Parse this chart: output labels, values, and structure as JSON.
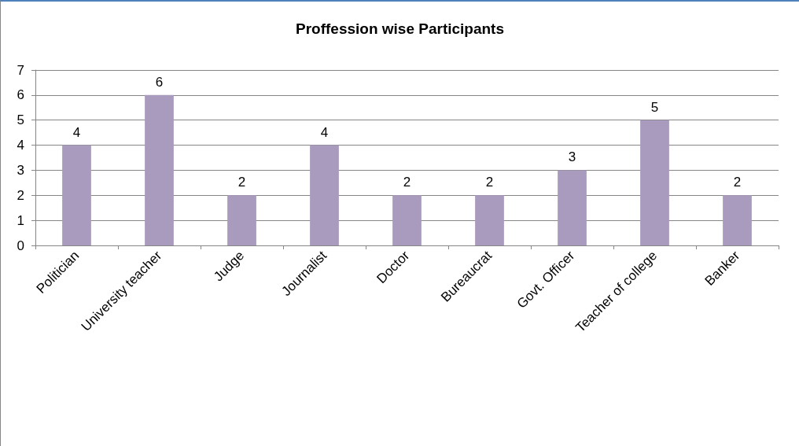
{
  "chart_data": {
    "type": "bar",
    "title": "Proffession wise Participants",
    "categories": [
      "Politician",
      "University teacher",
      "Judge",
      "Journalist",
      "Doctor",
      "Bureaucrat",
      "Govt. Officer",
      "Teacher of college",
      "Banker"
    ],
    "values": [
      4,
      6,
      2,
      4,
      2,
      2,
      3,
      5,
      2
    ],
    "color": "#a99bbd",
    "ylim": [
      0,
      7
    ],
    "yticks": [
      0,
      1,
      2,
      3,
      4,
      5,
      6,
      7
    ],
    "grid": "y",
    "data_labels": true
  }
}
